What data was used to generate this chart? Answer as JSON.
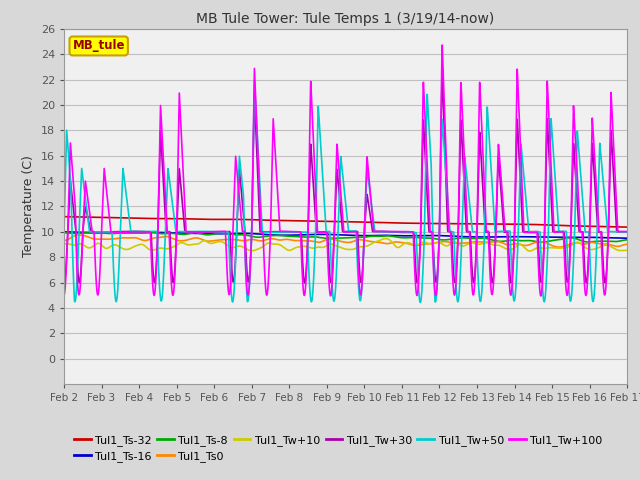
{
  "title": "MB Tule Tower: Tule Temps 1 (3/19/14-now)",
  "ylabel": "Temperature (C)",
  "ylim": [
    -2,
    26
  ],
  "yticks": [
    0,
    2,
    4,
    6,
    8,
    10,
    12,
    14,
    16,
    18,
    20,
    22,
    24,
    26
  ],
  "xtick_labels": [
    "Feb 2",
    "Feb 3",
    "Feb 4",
    "Feb 5",
    "Feb 6",
    "Feb 7",
    "Feb 8",
    "Feb 9",
    "Feb 10",
    "Feb 11",
    "Feb 12",
    "Feb 13",
    "Feb 14",
    "Feb 15",
    "Feb 16",
    "Feb 17"
  ],
  "legend_box_label": "MB_tule",
  "legend_box_color": "#ffff00",
  "legend_box_edge": "#c8a000",
  "background_color": "#d8d8d8",
  "plot_bg_color": "#f0f0f0",
  "grid_color": "#c0c0c0",
  "series": [
    {
      "label": "Tul1_Ts-32",
      "color": "#cc0000",
      "lw": 1.2
    },
    {
      "label": "Tul1_Ts-16",
      "color": "#0000cc",
      "lw": 1.2
    },
    {
      "label": "Tul1_Ts-8",
      "color": "#00aa00",
      "lw": 1.2
    },
    {
      "label": "Tul1_Ts0",
      "color": "#ff8800",
      "lw": 1.2
    },
    {
      "label": "Tul1_Tw+10",
      "color": "#cccc00",
      "lw": 1.2
    },
    {
      "label": "Tul1_Tw+30",
      "color": "#aa00aa",
      "lw": 1.2
    },
    {
      "label": "Tul1_Tw+50",
      "color": "#00cccc",
      "lw": 1.2
    },
    {
      "label": "Tul1_Tw+100",
      "color": "#ff00ff",
      "lw": 1.2
    }
  ]
}
